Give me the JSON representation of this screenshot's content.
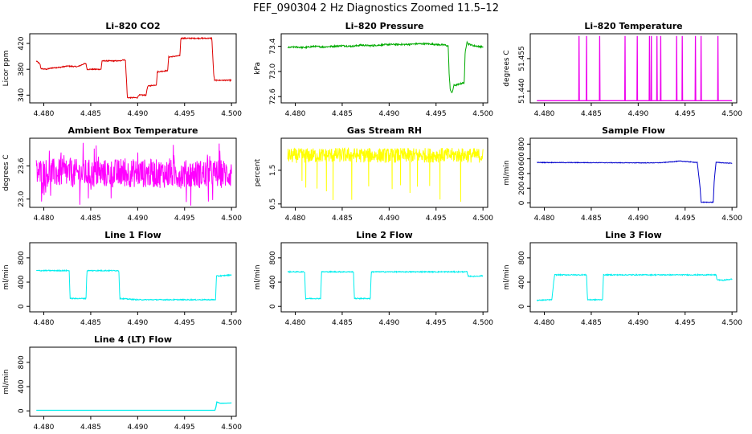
{
  "main_title": "FEF_090304  2 Hz Diagnostics Zoomed 11.5–12",
  "chart_data": [
    {
      "type": "line",
      "title": "Li–820 CO2",
      "ylabel": "Licor ppm",
      "color": "#dd0000",
      "noise": 0.8,
      "xlim": [
        4.4785,
        4.5005
      ],
      "ylim": [
        328,
        435
      ],
      "xticks": [
        "4.480",
        "4.485",
        "4.490",
        "4.495",
        "4.500"
      ],
      "yticks": [
        "340",
        "380",
        "420"
      ],
      "y_ticks_at": [
        340,
        380,
        420
      ],
      "x": [
        4.4792,
        4.4796,
        4.4797,
        4.4803,
        4.4808,
        4.4817,
        4.4825,
        4.4836,
        4.4842,
        4.4845,
        4.4846,
        4.4861,
        4.4862,
        4.4882,
        4.4884,
        4.4887,
        4.4889,
        4.49,
        4.4901,
        4.4909,
        4.491,
        4.4911,
        4.492,
        4.4921,
        4.4932,
        4.4933,
        4.4945,
        4.4946,
        4.4979,
        4.4981,
        4.4982,
        4.5
      ],
      "y": [
        393,
        388,
        381,
        380,
        382,
        383,
        385,
        384,
        388,
        389,
        380,
        380,
        393,
        393,
        395,
        394,
        336,
        336,
        340,
        340,
        350,
        354,
        356,
        376,
        378,
        399,
        401,
        428,
        428,
        372,
        363,
        363
      ]
    },
    {
      "type": "line",
      "title": "Li–820 Pressure",
      "ylabel": "kPa",
      "color": "#00aa00",
      "noise": 0.012,
      "xlim": [
        4.4785,
        4.5005
      ],
      "ylim": [
        72.5,
        73.6
      ],
      "xticks": [
        "4.480",
        "4.485",
        "4.490",
        "4.495",
        "4.500"
      ],
      "yticks": [
        "72.6",
        "73.0",
        "73.4"
      ],
      "y_ticks_at": [
        72.6,
        73.0,
        73.4
      ],
      "x": [
        4.4792,
        4.48,
        4.481,
        4.482,
        4.483,
        4.484,
        4.485,
        4.486,
        4.487,
        4.488,
        4.489,
        4.49,
        4.491,
        4.492,
        4.493,
        4.494,
        4.495,
        4.496,
        4.4963,
        4.4964,
        4.4965,
        4.4967,
        4.4969,
        4.497,
        4.4975,
        4.498,
        4.4981,
        4.4983,
        4.4984,
        4.499,
        4.5
      ],
      "y": [
        73.38,
        73.39,
        73.38,
        73.4,
        73.39,
        73.4,
        73.41,
        73.4,
        73.42,
        73.41,
        73.42,
        73.43,
        73.43,
        73.43,
        73.44,
        73.44,
        73.43,
        73.42,
        73.4,
        72.95,
        72.72,
        72.65,
        72.78,
        72.78,
        72.8,
        72.82,
        73.3,
        73.48,
        73.44,
        73.41,
        73.39
      ]
    },
    {
      "type": "line",
      "title": "Li–820 Temperature",
      "ylabel": "degrees C",
      "color": "#ee00ee",
      "noise": 0,
      "xlim": [
        4.4785,
        4.5005
      ],
      "ylim": [
        51.4345,
        51.4665
      ],
      "xticks": [
        "4.480",
        "4.485",
        "4.490",
        "4.495",
        "4.500"
      ],
      "yticks": [
        "51.440",
        "51.455"
      ],
      "y_ticks_at": [
        51.44,
        51.455
      ],
      "baseline": 51.4355,
      "spike_top": 51.4655,
      "spikes": [
        4.4837,
        4.4845,
        4.4859,
        4.4886,
        4.4899,
        4.4912,
        4.4914,
        4.492,
        4.4924,
        4.4941,
        4.4947,
        4.4961,
        4.4967,
        4.4985
      ],
      "x": [
        4.4792,
        4.5
      ],
      "y": [
        51.4355,
        51.4355
      ]
    },
    {
      "type": "line",
      "title": "Ambient Box Temperature",
      "ylabel": "degrees C",
      "color": "#ff00ff",
      "noise": 0.26,
      "spikiness": 2.2,
      "xlim": [
        4.4785,
        4.5005
      ],
      "ylim": [
        22.85,
        24.1
      ],
      "xticks": [
        "4.480",
        "4.485",
        "4.490",
        "4.495",
        "4.500"
      ],
      "yticks": [
        "23.0",
        "23.6"
      ],
      "y_ticks_at": [
        23.0,
        23.6
      ],
      "x": [
        4.4792,
        4.485,
        4.49,
        4.495,
        4.5
      ],
      "y": [
        23.48,
        23.46,
        23.47,
        23.45,
        23.46
      ]
    },
    {
      "type": "line",
      "title": "Gas Stream RH",
      "ylabel": "percent",
      "color": "#ffff00",
      "noise": 0.22,
      "dips": [
        4.4807,
        4.4811,
        4.4823,
        4.4833,
        4.484,
        4.486,
        4.4878,
        4.4903,
        4.4912,
        4.4922,
        4.493,
        4.4943,
        4.4954,
        4.4976
      ],
      "dip_min": 0.55,
      "xlim": [
        4.4785,
        4.5005
      ],
      "ylim": [
        0.4,
        2.45
      ],
      "xticks": [
        "4.480",
        "4.485",
        "4.490",
        "4.495",
        "4.500"
      ],
      "yticks": [
        "0.5",
        "1.5"
      ],
      "y_ticks_at": [
        0.5,
        1.5
      ],
      "x": [
        4.4792,
        4.485,
        4.49,
        4.495,
        4.5
      ],
      "y": [
        1.93,
        1.95,
        1.94,
        1.95,
        1.94
      ]
    },
    {
      "type": "line",
      "title": "Sample Flow",
      "ylabel": "ml/min",
      "color": "#0000cc",
      "noise": 4,
      "xlim": [
        4.4785,
        4.5005
      ],
      "ylim": [
        -60,
        880
      ],
      "xticks": [
        "4.480",
        "4.485",
        "4.490",
        "4.495",
        "4.500"
      ],
      "yticks": [
        "0",
        "200",
        "400",
        "600",
        "800"
      ],
      "y_ticks_at": [
        0,
        200,
        400,
        600,
        800
      ],
      "x": [
        4.4792,
        4.485,
        4.491,
        4.4925,
        4.4945,
        4.4963,
        4.4966,
        4.4967,
        4.498,
        4.4981,
        4.4983,
        4.499,
        4.5
      ],
      "y": [
        550,
        548,
        545,
        548,
        570,
        550,
        200,
        10,
        10,
        300,
        555,
        545,
        540
      ]
    },
    {
      "type": "line",
      "title": "Line 1 Flow",
      "ylabel": "ml/min",
      "color": "#00eeee",
      "noise": 8,
      "xlim": [
        4.4785,
        4.5005
      ],
      "ylim": [
        -90,
        1050
      ],
      "xticks": [
        "4.480",
        "4.485",
        "4.490",
        "4.495",
        "4.500"
      ],
      "yticks": [
        "0",
        "400",
        "800"
      ],
      "y_ticks_at": [
        0,
        400,
        800
      ],
      "x": [
        4.4792,
        4.4827,
        4.4828,
        4.4845,
        4.4846,
        4.488,
        4.4881,
        4.49,
        4.495,
        4.4983,
        4.4984,
        4.499,
        4.5
      ],
      "y": [
        590,
        590,
        130,
        130,
        590,
        590,
        130,
        110,
        110,
        110,
        500,
        505,
        520
      ]
    },
    {
      "type": "line",
      "title": "Line 2 Flow",
      "ylabel": "ml/min",
      "color": "#00eeee",
      "noise": 8,
      "xlim": [
        4.4785,
        4.5005
      ],
      "ylim": [
        -90,
        1050
      ],
      "xticks": [
        "4.480",
        "4.485",
        "4.490",
        "4.495",
        "4.500"
      ],
      "yticks": [
        "0",
        "400",
        "800"
      ],
      "y_ticks_at": [
        0,
        400,
        800
      ],
      "x": [
        4.4792,
        4.481,
        4.4811,
        4.4827,
        4.4828,
        4.4862,
        4.4863,
        4.488,
        4.4881,
        4.4983,
        4.4984,
        4.499,
        4.5
      ],
      "y": [
        570,
        570,
        130,
        130,
        570,
        570,
        130,
        130,
        570,
        570,
        500,
        495,
        505
      ]
    },
    {
      "type": "line",
      "title": "Line 3 Flow",
      "ylabel": "ml/min",
      "color": "#00eeee",
      "noise": 8,
      "xlim": [
        4.4785,
        4.5005
      ],
      "ylim": [
        -90,
        1050
      ],
      "xticks": [
        "4.480",
        "4.485",
        "4.490",
        "4.495",
        "4.500"
      ],
      "yticks": [
        "0",
        "400",
        "800"
      ],
      "y_ticks_at": [
        0,
        400,
        800
      ],
      "x": [
        4.4792,
        4.4808,
        4.481,
        4.4811,
        4.4845,
        4.4846,
        4.4862,
        4.4863,
        4.4983,
        4.4984,
        4.499,
        4.5
      ],
      "y": [
        100,
        110,
        400,
        520,
        520,
        110,
        110,
        520,
        520,
        440,
        430,
        450
      ]
    },
    {
      "type": "line",
      "title": "Line 4 (LT) Flow",
      "ylabel": "ml/min",
      "color": "#00eeee",
      "noise": 0,
      "xlim": [
        4.4785,
        4.5005
      ],
      "ylim": [
        -90,
        1050
      ],
      "xticks": [
        "4.480",
        "4.485",
        "4.490",
        "4.495",
        "4.500"
      ],
      "yticks": [
        "0",
        "400",
        "800"
      ],
      "y_ticks_at": [
        0,
        400,
        800
      ],
      "x": [
        4.4792,
        4.49,
        4.4983,
        4.4984,
        4.4988,
        4.5
      ],
      "y": [
        10,
        10,
        10,
        150,
        125,
        130
      ]
    }
  ]
}
